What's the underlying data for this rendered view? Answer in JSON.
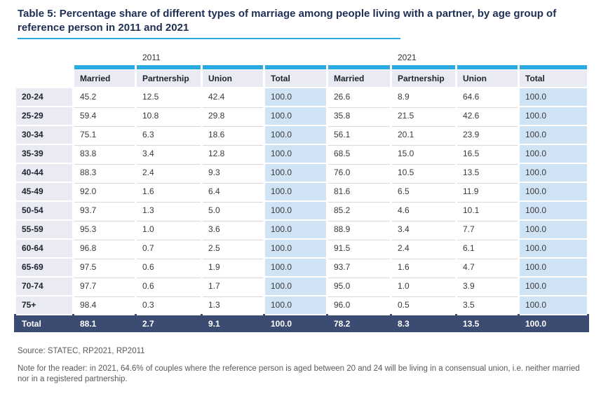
{
  "title": "Table 5: Percentage share of different types of marriage among people living with a partner, by age group of reference person in 2011 and 2021",
  "table": {
    "year_groups": [
      "2011",
      "2021"
    ],
    "columns": [
      "Married",
      "Partnership",
      "Union",
      "Total"
    ],
    "rows": [
      {
        "age": "20-24",
        "y2011": [
          "45.2",
          "12.5",
          "42.4",
          "100.0"
        ],
        "y2021": [
          "26.6",
          "8.9",
          "64.6",
          "100.0"
        ]
      },
      {
        "age": "25-29",
        "y2011": [
          "59.4",
          "10.8",
          "29.8",
          "100.0"
        ],
        "y2021": [
          "35.8",
          "21.5",
          "42.6",
          "100.0"
        ]
      },
      {
        "age": "30-34",
        "y2011": [
          "75.1",
          "6.3",
          "18.6",
          "100.0"
        ],
        "y2021": [
          "56.1",
          "20.1",
          "23.9",
          "100.0"
        ]
      },
      {
        "age": "35-39",
        "y2011": [
          "83.8",
          "3.4",
          "12.8",
          "100.0"
        ],
        "y2021": [
          "68.5",
          "15.0",
          "16.5",
          "100.0"
        ]
      },
      {
        "age": "40-44",
        "y2011": [
          "88.3",
          "2.4",
          "9.3",
          "100.0"
        ],
        "y2021": [
          "76.0",
          "10.5",
          "13.5",
          "100.0"
        ]
      },
      {
        "age": "45-49",
        "y2011": [
          "92.0",
          "1.6",
          "6.4",
          "100.0"
        ],
        "y2021": [
          "81.6",
          "6.5",
          "11.9",
          "100.0"
        ]
      },
      {
        "age": "50-54",
        "y2011": [
          "93.7",
          "1.3",
          "5.0",
          "100.0"
        ],
        "y2021": [
          "85.2",
          "4.6",
          "10.1",
          "100.0"
        ]
      },
      {
        "age": "55-59",
        "y2011": [
          "95.3",
          "1.0",
          "3.6",
          "100.0"
        ],
        "y2021": [
          "88.9",
          "3.4",
          "7.7",
          "100.0"
        ]
      },
      {
        "age": "60-64",
        "y2011": [
          "96.8",
          "0.7",
          "2.5",
          "100.0"
        ],
        "y2021": [
          "91.5",
          "2.4",
          "6.1",
          "100.0"
        ]
      },
      {
        "age": "65-69",
        "y2011": [
          "97.5",
          "0.6",
          "1.9",
          "100.0"
        ],
        "y2021": [
          "93.7",
          "1.6",
          "4.7",
          "100.0"
        ]
      },
      {
        "age": "70-74",
        "y2011": [
          "97.7",
          "0.6",
          "1.7",
          "100.0"
        ],
        "y2021": [
          "95.0",
          "1.0",
          "3.9",
          "100.0"
        ]
      },
      {
        "age": "75+",
        "y2011": [
          "98.4",
          "0.3",
          "1.3",
          "100.0"
        ],
        "y2021": [
          "96.0",
          "0.5",
          "3.5",
          "100.0"
        ]
      }
    ],
    "total_row": {
      "label": "Total",
      "y2011": [
        "88.1",
        "2.7",
        "9.1",
        "100.0"
      ],
      "y2021": [
        "78.2",
        "8.3",
        "13.5",
        "100.0"
      ]
    }
  },
  "footer": {
    "source": "Source: STATEC, RP2021, RP2011",
    "note": "Note for the reader: in 2021, 64.6% of couples where the reference person is aged between 20 and 24 will be living in a consensual union, i.e. neither married nor in a registered partnership."
  },
  "colors": {
    "accent_cyan": "#29abe2",
    "header_bg": "#e9eaf2",
    "total_column_bg": "#cfe3f4",
    "total_row_bg": "#3c4b71",
    "title_color": "#1e2f54"
  }
}
